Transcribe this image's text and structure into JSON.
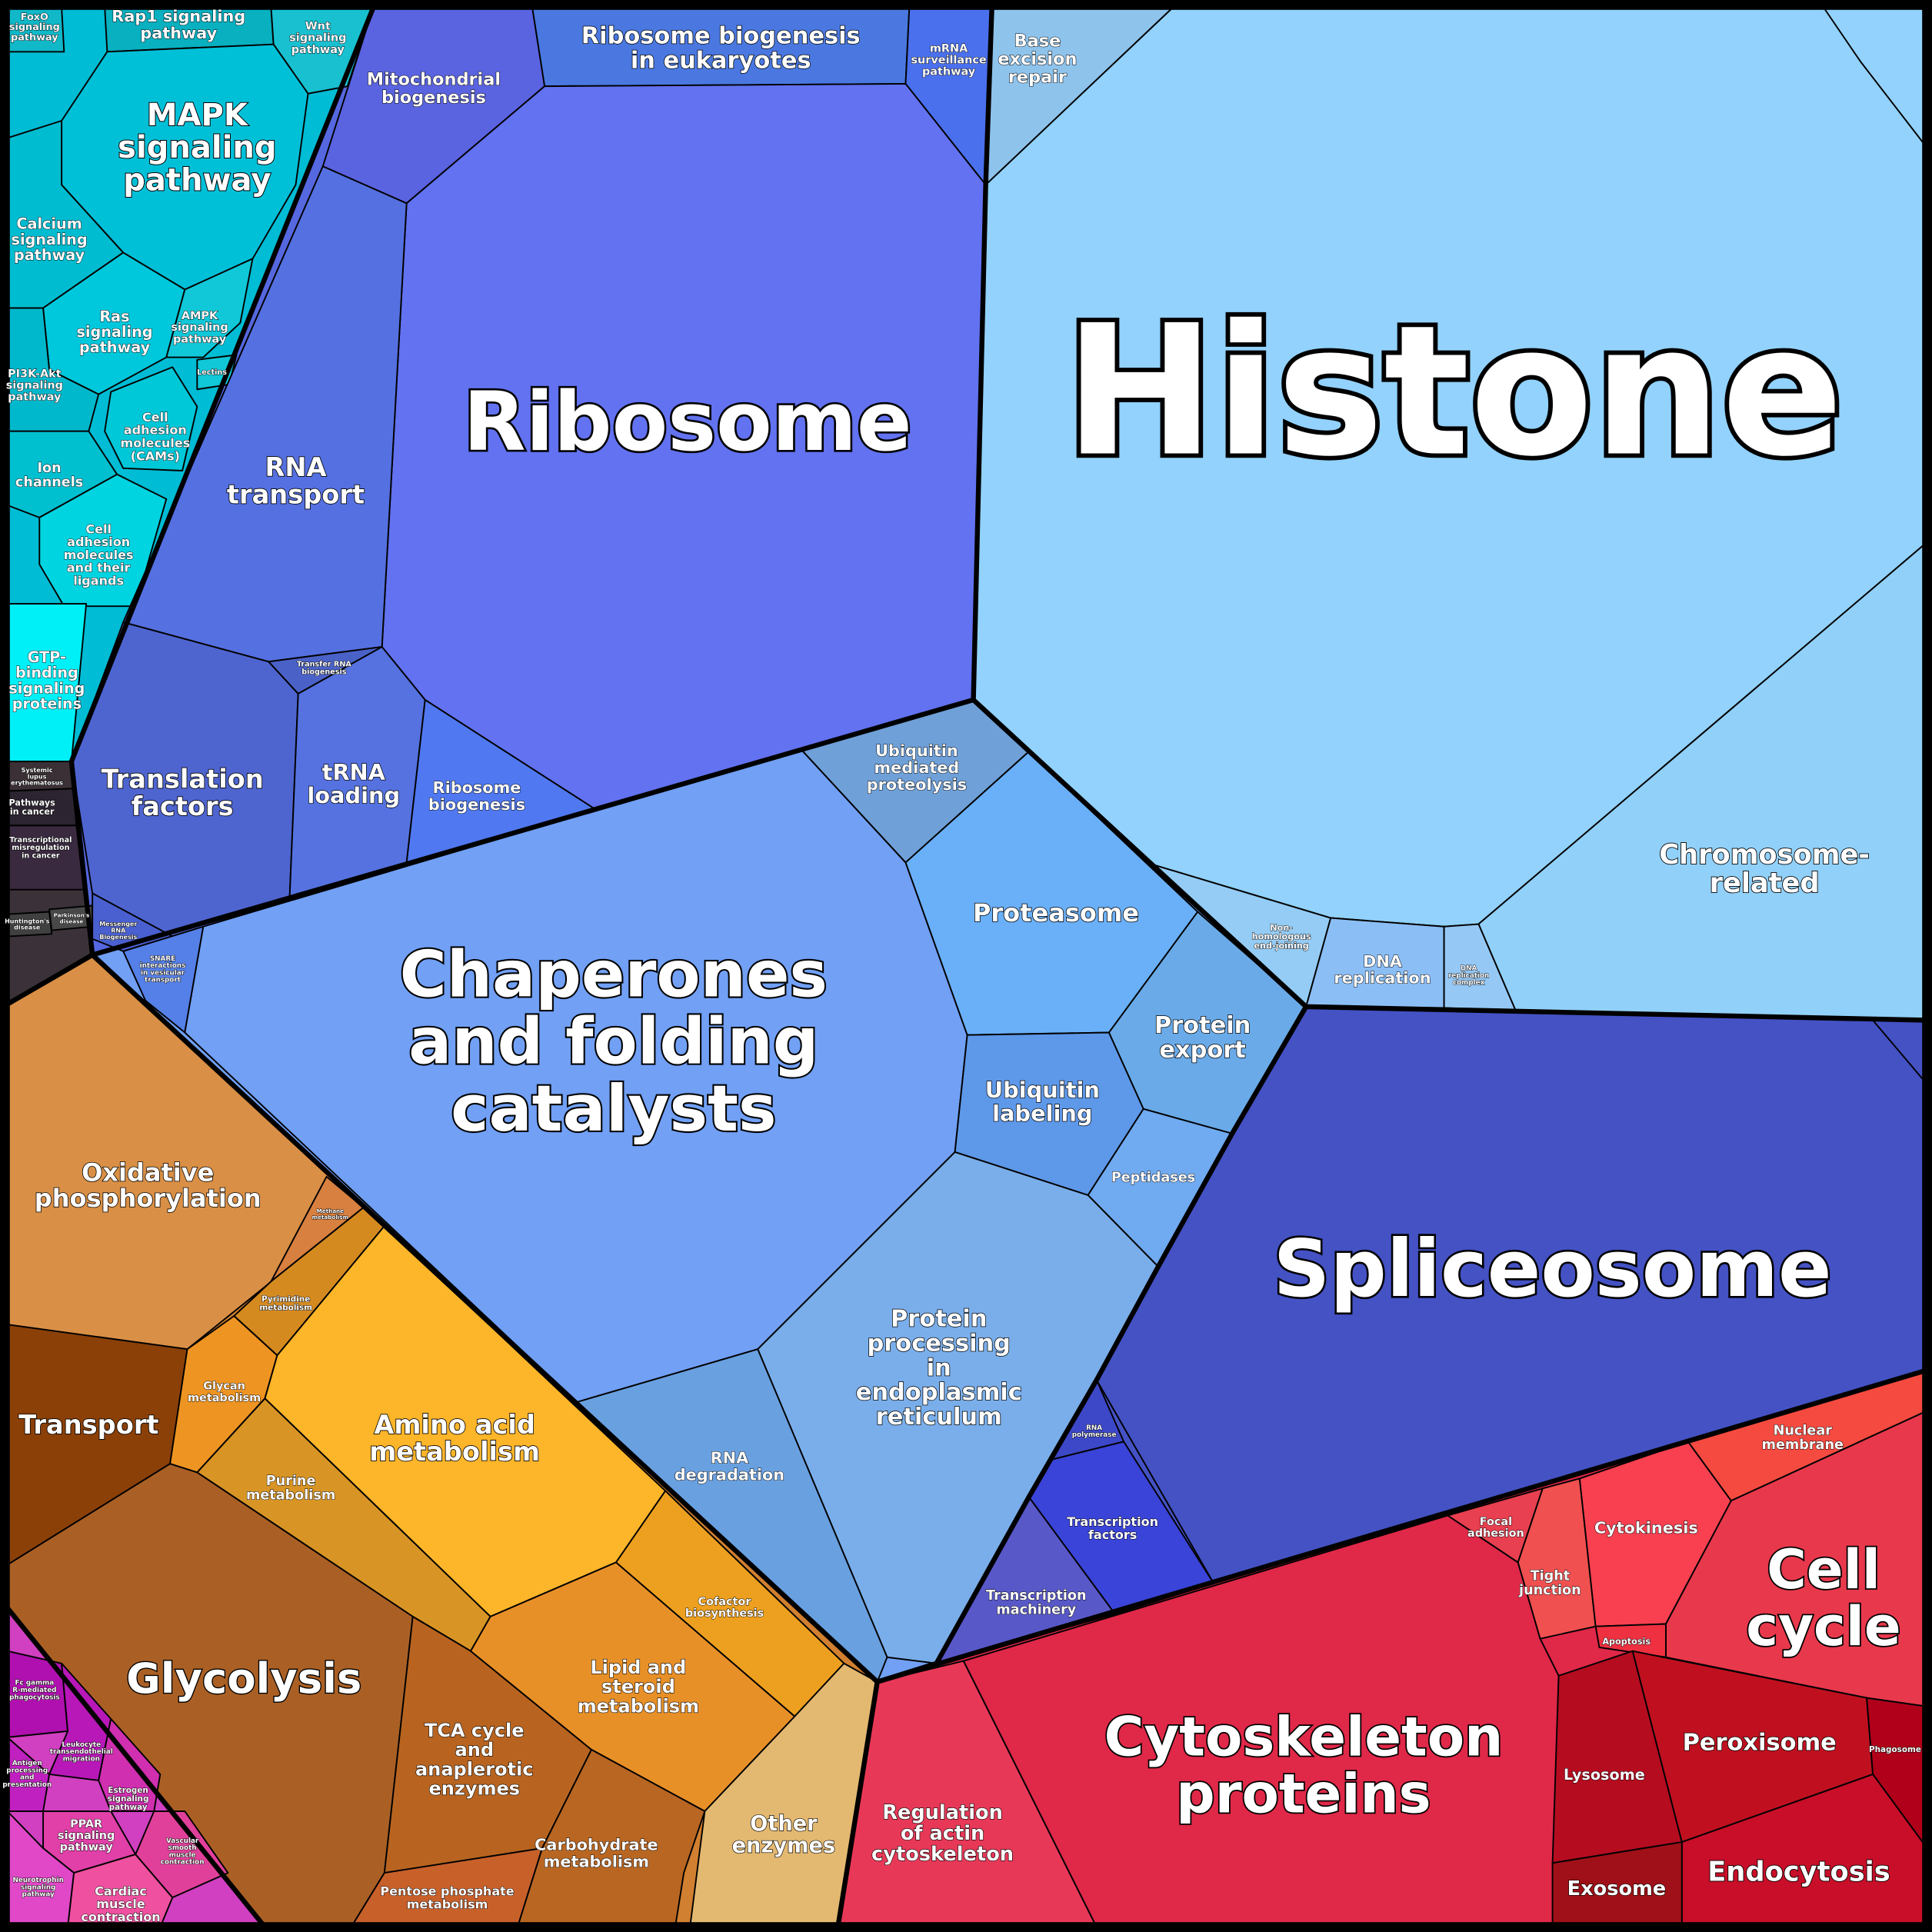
{
  "cells": [
    {
      "lines": [
        "FoxO",
        "signaling",
        "pathway"
      ],
      "color": "#10b8c8"
    },
    {
      "lines": [
        "Rap1 signaling",
        "pathway"
      ],
      "color": "#08b0c0"
    },
    {
      "lines": [
        "Wnt",
        "signaling",
        "pathway"
      ],
      "color": "#18c0d0"
    },
    {
      "lines": [
        "MAPK",
        "signaling",
        "pathway"
      ],
      "color": "#00c0d8"
    },
    {
      "lines": [
        "Calcium",
        "signaling",
        "pathway"
      ],
      "color": "#00bcd0"
    },
    {
      "lines": [
        "Ras",
        "signaling",
        "pathway"
      ],
      "color": "#00c8dc"
    },
    {
      "lines": [
        "AMPK",
        "signaling",
        "pathway"
      ],
      "color": "#10c8d8"
    },
    {
      "lines": [
        "PI3K-Akt",
        "signaling",
        "pathway"
      ],
      "color": "#00b8cc"
    },
    {
      "lines": [
        "Cell",
        "adhesion",
        "molecules",
        "(CAMs)"
      ],
      "color": "#00c8d8"
    },
    {
      "lines": [
        "Ion",
        "channels"
      ],
      "color": "#00c0d0"
    },
    {
      "lines": [
        "Cell",
        "adhesion",
        "molecules",
        "and their",
        "ligands"
      ],
      "color": "#00d4e0"
    },
    {
      "lines": [
        "GTP-",
        "binding",
        "signaling",
        "proteins"
      ],
      "color": "#00f0f8"
    },
    {
      "lines": [
        "Lectins"
      ],
      "color": "#10c8d8"
    },
    {
      "lines": [
        "Systemic",
        "lupus",
        "erythematosus"
      ],
      "color": "#3a3036"
    },
    {
      "lines": [
        "Pathways",
        "in cancer"
      ],
      "color": "#2c2430"
    },
    {
      "lines": [
        "Transcriptional",
        "misregulation",
        "in cancer"
      ],
      "color": "#3a2a40"
    },
    {
      "lines": [
        "Huntington's",
        "disease"
      ],
      "color": "#404040"
    },
    {
      "lines": [
        "Parkinson's",
        "disease"
      ],
      "color": "#484848"
    },
    {
      "lines": [
        "Mitochondrial",
        "biogenesis"
      ],
      "color": "#5a63e0"
    },
    {
      "lines": [
        "Ribosome biogenesis",
        "in eukaryotes"
      ],
      "color": "#4a78e0"
    },
    {
      "lines": [
        "mRNA",
        "surveillance",
        "pathway"
      ],
      "color": "#4a70ee"
    },
    {
      "lines": [
        "Ribosome"
      ],
      "color": "#6272f0"
    },
    {
      "lines": [
        "RNA",
        "transport"
      ],
      "color": "#5570e0"
    },
    {
      "lines": [
        "Translation",
        "factors"
      ],
      "color": "#4e65d0"
    },
    {
      "lines": [
        "Transfer RNA",
        "biogenesis"
      ],
      "color": "#4a62c8"
    },
    {
      "lines": [
        "tRNA",
        "loading"
      ],
      "color": "#5572e0"
    },
    {
      "lines": [
        "Ribosome",
        "biogenesis"
      ],
      "color": "#5078f0"
    },
    {
      "lines": [
        "Messenger",
        "RNA",
        "Biogenesis"
      ],
      "color": "#4a60d0"
    },
    {
      "lines": [
        "SNARE",
        "interactions",
        "in vesicular",
        "transport"
      ],
      "color": "#5580e8"
    },
    {
      "lines": [
        "Chaperones",
        "and folding",
        "catalysts"
      ],
      "color": "#71a0f5"
    },
    {
      "lines": [
        "Ubiquitin",
        "mediated",
        "proteolysis"
      ],
      "color": "#6fa0d8"
    },
    {
      "lines": [
        "Proteasome"
      ],
      "color": "#6ab0f8"
    },
    {
      "lines": [
        "Protein",
        "export"
      ],
      "color": "#6aaae8"
    },
    {
      "lines": [
        "Ubiquitin",
        "labeling"
      ],
      "color": "#5e98e8"
    },
    {
      "lines": [
        "Peptidases"
      ],
      "color": "#70aaf0"
    },
    {
      "lines": [
        "Protein",
        "processing",
        "in",
        "endoplasmic",
        "reticulum"
      ],
      "color": "#7aaeea"
    },
    {
      "lines": [
        "RNA",
        "degradation"
      ],
      "color": "#69a0e0"
    },
    {
      "lines": [
        "Spliceosome"
      ],
      "color": "#4452c4"
    },
    {
      "lines": [
        "RNA",
        "polymerase"
      ],
      "color": "#3d48c8"
    },
    {
      "lines": [
        "Transcription",
        "factors"
      ],
      "color": "#3a44d8"
    },
    {
      "lines": [
        "Transcription",
        "machinery"
      ],
      "color": "#5858c8"
    },
    {
      "lines": [
        "Base",
        "excision",
        "repair"
      ],
      "color": "#8ec3ec"
    },
    {
      "lines": [
        "Histone"
      ],
      "color": "#92d2fc"
    },
    {
      "lines": [
        "Chromosome-",
        "related"
      ],
      "color": "#91d0f8"
    },
    {
      "lines": [
        "Non-",
        "homologous",
        "end-joining"
      ],
      "color": "#94ccf5"
    },
    {
      "lines": [
        "DNA",
        "replication"
      ],
      "color": "#8bbef5"
    },
    {
      "lines": [
        "DNA",
        "replication",
        "complex"
      ],
      "color": "#95c8f5"
    },
    {
      "lines": [
        "Regulation",
        "of actin",
        "cytoskeleton"
      ],
      "color": "#e83858"
    },
    {
      "lines": [
        "Cytoskeleton",
        "proteins"
      ],
      "color": "#e02848"
    },
    {
      "lines": [
        "Focal",
        "adhesion"
      ],
      "color": "#e84050"
    },
    {
      "lines": [
        "Tight",
        "junction"
      ],
      "color": "#f05050"
    },
    {
      "lines": [
        "Cytokinesis"
      ],
      "color": "#f84050"
    },
    {
      "lines": [
        "Nuclear",
        "membrane"
      ],
      "color": "#f54a40"
    },
    {
      "lines": [
        "Cell",
        "cycle"
      ],
      "color": "#e8384c"
    },
    {
      "lines": [
        "Apoptosis"
      ],
      "color": "#ee3040"
    },
    {
      "lines": [
        "Lysosome"
      ],
      "color": "#b50c20"
    },
    {
      "lines": [
        "Peroxisome"
      ],
      "color": "#c01020"
    },
    {
      "lines": [
        "Phagosome"
      ],
      "color": "#b0001a"
    },
    {
      "lines": [
        "Endocytosis"
      ],
      "color": "#c80e28"
    },
    {
      "lines": [
        "Exosome"
      ],
      "color": "#a01018"
    },
    {
      "lines": [
        "Oxidative",
        "phosphorylation"
      ],
      "color": "#d98f45"
    },
    {
      "lines": [
        "Methane",
        "metabolism"
      ],
      "color": "#d88040"
    },
    {
      "lines": [
        "Transport"
      ],
      "color": "#8b4008"
    },
    {
      "lines": [
        "Glycan",
        "metabolism"
      ],
      "color": "#ee9422"
    },
    {
      "lines": [
        "Pyrimidine",
        "metabolism"
      ],
      "color": "#d58a20"
    },
    {
      "lines": [
        "Amino acid",
        "metabolism"
      ],
      "color": "#fdb52a"
    },
    {
      "lines": [
        "Purine",
        "metabolism"
      ],
      "color": "#d89525"
    },
    {
      "lines": [
        "Glycolysis"
      ],
      "color": "#aa6025"
    },
    {
      "lines": [
        "TCA cycle",
        "and",
        "anaplerotic",
        "enzymes"
      ],
      "color": "#b86420"
    },
    {
      "lines": [
        "Lipid and",
        "steroid",
        "metabolism"
      ],
      "color": "#e89028"
    },
    {
      "lines": [
        "Cofactor",
        "biosynthesis"
      ],
      "color": "#eda020"
    },
    {
      "lines": [
        "Carbohydrate",
        "metabolism"
      ],
      "color": "#b86622"
    },
    {
      "lines": [
        "Pentose phosphate",
        "metabolism"
      ],
      "color": "#c8602a"
    },
    {
      "lines": [
        "Other",
        "enzymes"
      ],
      "color": "#e3b870"
    },
    {
      "lines": [
        "Fc gamma",
        "R-mediated",
        "phagocytosis"
      ],
      "color": "#b010b0"
    },
    {
      "lines": [
        "Leukocyte",
        "transendothelial",
        "migration"
      ],
      "color": "#b818b8"
    },
    {
      "lines": [
        "Antigen",
        "processing",
        "and",
        "presentation"
      ],
      "color": "#c020c0"
    },
    {
      "lines": [
        "Estrogen",
        "signaling",
        "pathway"
      ],
      "color": "#d02fb0"
    },
    {
      "lines": [
        "PPAR",
        "signaling",
        "pathway"
      ],
      "color": "#e040a8"
    },
    {
      "lines": [
        "Neurotrophin",
        "signaling",
        "pathway"
      ],
      "color": "#e048c8"
    },
    {
      "lines": [
        "Cardiac",
        "muscle",
        "contraction"
      ],
      "color": "#f050a0"
    },
    {
      "lines": [
        "Vascular",
        "smooth",
        "muscle",
        "contraction"
      ],
      "color": "#e0409a"
    }
  ]
}
